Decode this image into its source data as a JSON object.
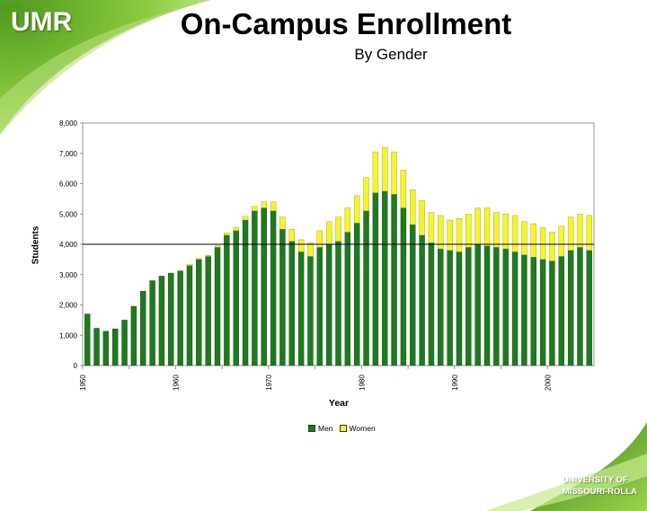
{
  "header": {
    "logo": "UMR",
    "title": "On-Campus Enrollment",
    "subtitle": "By Gender"
  },
  "footer": {
    "line1": "UNIVERSITY OF",
    "line2": "MISSOURI-ROLLA"
  },
  "colors": {
    "men": "#1e7a1e",
    "women": "#f4f42a",
    "brand_green": "#7ec43c"
  },
  "chart_data": {
    "type": "bar",
    "stacked": true,
    "title": "",
    "xlabel": "Year",
    "ylabel": "Students",
    "ylim": [
      0,
      8000
    ],
    "y_ticks": [
      "0",
      "1,000",
      "2,000",
      "3,000",
      "4,000",
      "5,000",
      "6,000",
      "7,000",
      "8,000"
    ],
    "x_tick_labels": [
      "1950",
      "1960",
      "1970",
      "1980",
      "1990",
      "2000"
    ],
    "reference_line": 4000,
    "legend": {
      "position": "bottom",
      "items": [
        "Men",
        "Women"
      ]
    },
    "categories": [
      1950,
      1951,
      1952,
      1953,
      1954,
      1955,
      1956,
      1957,
      1958,
      1959,
      1960,
      1961,
      1962,
      1963,
      1964,
      1965,
      1966,
      1967,
      1968,
      1969,
      1970,
      1971,
      1972,
      1973,
      1974,
      1975,
      1976,
      1977,
      1978,
      1979,
      1980,
      1981,
      1982,
      1983,
      1984,
      1985,
      1986,
      1987,
      1988,
      1989,
      1990,
      1991,
      1992,
      1993,
      1994,
      1995,
      1996,
      1997,
      1998,
      1999,
      2000,
      2001,
      2002,
      2003,
      2004
    ],
    "series": [
      {
        "name": "Men",
        "values": [
          1700,
          1230,
          1130,
          1210,
          1500,
          1950,
          2450,
          2800,
          2950,
          3050,
          3120,
          3300,
          3500,
          3600,
          3900,
          4300,
          4450,
          4800,
          5100,
          5200,
          5100,
          4500,
          4100,
          3750,
          3600,
          3900,
          4000,
          4100,
          4400,
          4700,
          5100,
          5700,
          5750,
          5650,
          5200,
          4650,
          4300,
          4050,
          3850,
          3800,
          3750,
          3900,
          4000,
          3950,
          3900,
          3850,
          3750,
          3650,
          3580,
          3500,
          3450,
          3600,
          3800,
          3900,
          3800
        ]
      },
      {
        "name": "Women",
        "values": [
          0,
          0,
          0,
          0,
          0,
          0,
          0,
          0,
          0,
          0,
          20,
          30,
          30,
          40,
          50,
          80,
          100,
          120,
          150,
          200,
          300,
          400,
          400,
          400,
          450,
          550,
          750,
          800,
          800,
          900,
          1100,
          1350,
          1450,
          1400,
          1250,
          1150,
          1150,
          1000,
          1100,
          1000,
          1100,
          1100,
          1200,
          1250,
          1150,
          1150,
          1200,
          1100,
          1100,
          1050,
          950,
          1000,
          1100,
          1100,
          1150
        ]
      }
    ]
  }
}
